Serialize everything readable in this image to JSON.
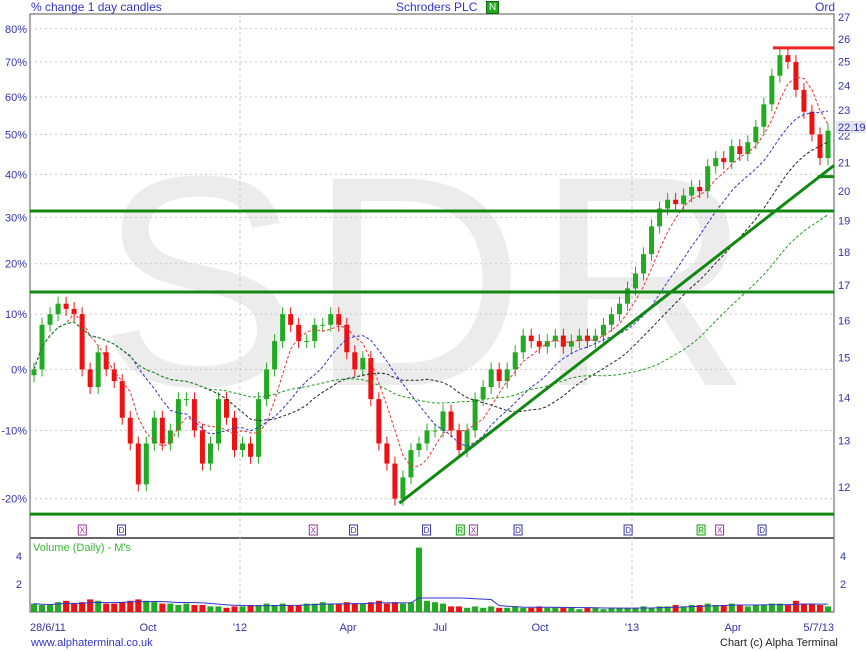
{
  "header": {
    "left": "% change 1 day candles",
    "title": "Schroders PLC",
    "badge": "N",
    "right": "Ord"
  },
  "footer": {
    "left": "www.alphaterminal.co.uk",
    "right": "Chart (c) Alpha Terminal"
  },
  "colors": {
    "up": "#22aa22",
    "down": "#ee1111",
    "text": "#3333aa",
    "grid": "#c8c8c8",
    "lines": "#118811",
    "resistance": "#ee2222",
    "watermark": "#ececec"
  },
  "chart_data": [
    {
      "type": "candlestick",
      "watermark": "SDR",
      "y_left": {
        "label": "",
        "ticks": [
          "80%",
          "70%",
          "60%",
          "50%",
          "40%",
          "30%",
          "20%",
          "10%",
          "0%",
          "-10%",
          "-20%"
        ],
        "tick_values": [
          0.8,
          0.7,
          0.6,
          0.5,
          0.4,
          0.3,
          0.2,
          0.1,
          0,
          -0.1,
          -0.2
        ],
        "scale": "log"
      },
      "y_right": {
        "ticks": [
          27,
          26,
          25,
          24,
          23,
          22,
          21,
          20,
          19,
          18,
          17,
          16,
          15,
          14,
          13,
          12
        ],
        "last_price": "22.19",
        "range": [
          11.3,
          27.2
        ],
        "scale": "log"
      },
      "base_price": 14.7,
      "x_labels": [
        "28/6/11",
        "Oct",
        "'12",
        "Apr",
        "Jul",
        "Oct",
        "'13",
        "Apr",
        "5/7/13"
      ],
      "x_range": [
        "2011-06-28",
        "2013-07-05"
      ],
      "pct_change_closes": [
        0,
        0.08,
        0.1,
        0.12,
        0.11,
        0.1,
        0.0,
        -0.03,
        0.03,
        0.0,
        -0.02,
        -0.08,
        -0.12,
        -0.18,
        -0.12,
        -0.08,
        -0.12,
        -0.1,
        -0.05,
        -0.05,
        -0.1,
        -0.15,
        -0.12,
        -0.05,
        -0.08,
        -0.13,
        -0.12,
        -0.14,
        -0.05,
        0.0,
        0.05,
        0.1,
        0.08,
        0.05,
        0.05,
        0.08,
        0.08,
        0.1,
        0.08,
        0.03,
        0.0,
        0.02,
        -0.05,
        -0.12,
        -0.15,
        -0.2,
        -0.17,
        -0.13,
        -0.12,
        -0.1,
        -0.1,
        -0.07,
        -0.1,
        -0.13,
        -0.1,
        -0.05,
        -0.03,
        0.0,
        -0.02,
        0.0,
        0.03,
        0.06,
        0.05,
        0.04,
        0.05,
        0.06,
        0.04,
        0.05,
        0.06,
        0.05,
        0.06,
        0.08,
        0.1,
        0.12,
        0.15,
        0.18,
        0.22,
        0.28,
        0.32,
        0.34,
        0.33,
        0.35,
        0.37,
        0.36,
        0.42,
        0.44,
        0.43,
        0.47,
        0.45,
        0.48,
        0.52,
        0.58,
        0.66,
        0.72,
        0.7,
        0.62,
        0.56,
        0.5,
        0.44,
        0.51
      ],
      "moving_averages": [
        {
          "period": 5,
          "color": "#ee3333"
        },
        {
          "period": 12,
          "color": "#3333cc"
        },
        {
          "period": 22,
          "color": "#222222"
        },
        {
          "period": 40,
          "color": "#229922"
        }
      ],
      "horizontal_lines": [
        {
          "price": 19.32,
          "color": "#118811"
        },
        {
          "price": 16.8,
          "color": "#118811"
        },
        {
          "price": 11.45,
          "color": "#118811"
        },
        {
          "price": 25.6,
          "color": "#ee2222",
          "from": "2013-05-10"
        },
        {
          "price": 20.5,
          "color": "#118811",
          "from": "2013-06-20"
        }
      ],
      "trendline": {
        "from": [
          "2012-06-01",
          11.67
        ],
        "to": [
          "2013-07-05",
          20.9
        ],
        "color": "#118811"
      },
      "events": [
        {
          "label": "X",
          "date": "2011-08-15"
        },
        {
          "label": "D",
          "date": "2011-09-20"
        },
        {
          "label": "X",
          "date": "2012-03-14"
        },
        {
          "label": "D",
          "date": "2012-04-20"
        },
        {
          "label": "D",
          "date": "2012-06-26"
        },
        {
          "label": "R",
          "date": "2012-07-27"
        },
        {
          "label": "X",
          "date": "2012-08-08"
        },
        {
          "label": "D",
          "date": "2012-09-18"
        },
        {
          "label": "D",
          "date": "2012-12-28"
        },
        {
          "label": "R",
          "date": "2013-03-05"
        },
        {
          "label": "X",
          "date": "2013-03-22"
        },
        {
          "label": "D",
          "date": "2013-04-30"
        }
      ]
    },
    {
      "type": "bar",
      "title": "Volume (Daily) - M's",
      "y_ticks": [
        2,
        4
      ],
      "values": [
        0.6,
        0.5,
        0.5,
        0.7,
        0.8,
        0.6,
        0.7,
        0.9,
        0.8,
        0.6,
        0.6,
        0.7,
        0.8,
        0.9,
        0.8,
        0.7,
        0.6,
        0.6,
        0.5,
        0.6,
        0.5,
        0.5,
        0.4,
        0.4,
        0.3,
        0.4,
        0.4,
        0.5,
        0.5,
        0.6,
        0.5,
        0.6,
        0.5,
        0.5,
        0.6,
        0.6,
        0.7,
        0.6,
        0.6,
        0.7,
        0.6,
        0.6,
        0.7,
        0.8,
        0.6,
        0.7,
        0.6,
        0.7,
        4.6,
        0.8,
        0.7,
        0.6,
        0.4,
        0.4,
        0.3,
        0.4,
        0.3,
        0.4,
        0.3,
        0.3,
        0.4,
        0.3,
        0.3,
        0.4,
        0.3,
        0.3,
        0.3,
        0.3,
        0.2,
        0.3,
        0.3,
        0.2,
        0.3,
        0.3,
        0.3,
        0.3,
        0.4,
        0.3,
        0.4,
        0.4,
        0.5,
        0.4,
        0.5,
        0.5,
        0.6,
        0.5,
        0.5,
        0.6,
        0.5,
        0.4,
        0.5,
        0.5,
        0.6,
        0.6,
        0.5,
        0.8,
        0.6,
        0.6,
        0.5,
        0.4
      ]
    }
  ]
}
